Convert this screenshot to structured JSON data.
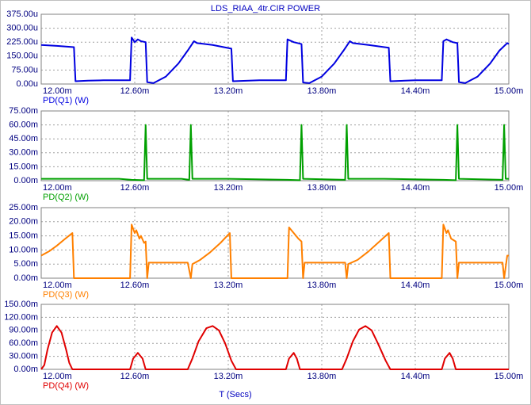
{
  "chart_data": [
    {
      "type": "line",
      "title": "LDS_RIAA_4tr.CIR POWER",
      "grid": true,
      "xlim": [
        12,
        15
      ],
      "xticks": [
        {
          "value": 12,
          "label": "12.00m"
        },
        {
          "value": 12.6,
          "label": "12.60m"
        },
        {
          "value": 13.2,
          "label": "13.20m"
        },
        {
          "value": 13.8,
          "label": "13.80m"
        },
        {
          "value": 14.4,
          "label": "14.40m"
        },
        {
          "value": 15,
          "label": "15.00m"
        }
      ],
      "ylim": [
        0,
        375
      ],
      "yticks": [
        {
          "value": 0,
          "label": "0.00u"
        },
        {
          "value": 75,
          "label": "75.00u"
        },
        {
          "value": 150,
          "label": "150.00u"
        },
        {
          "value": 225,
          "label": "225.00u"
        },
        {
          "value": 300,
          "label": "300.00u"
        },
        {
          "value": 375,
          "label": "375.00u"
        }
      ],
      "x": [
        12.0,
        12.1,
        12.21,
        12.22,
        12.3,
        12.4,
        12.57,
        12.58,
        12.6,
        12.62,
        12.64,
        12.67,
        12.68,
        12.72,
        12.8,
        12.88,
        12.94,
        12.98,
        13.0,
        13.1,
        13.22,
        13.23,
        13.4,
        13.57,
        13.58,
        13.62,
        13.67,
        13.68,
        13.72,
        13.8,
        13.88,
        13.94,
        13.98,
        14.0,
        14.1,
        14.23,
        14.24,
        14.4,
        14.57,
        14.58,
        14.6,
        14.64,
        14.67,
        14.68,
        14.72,
        14.8,
        14.88,
        14.94,
        14.99,
        15.0
      ],
      "series": [
        {
          "name": "PD(Q1) (W)",
          "color": "#0000e0",
          "values": [
            210,
            205,
            198,
            15,
            18,
            20,
            20,
            250,
            225,
            240,
            230,
            225,
            10,
            5,
            40,
            110,
            180,
            230,
            220,
            210,
            190,
            15,
            20,
            20,
            240,
            225,
            215,
            8,
            5,
            40,
            110,
            180,
            230,
            220,
            210,
            195,
            15,
            20,
            20,
            230,
            240,
            225,
            220,
            10,
            5,
            40,
            110,
            180,
            220,
            215
          ]
        }
      ]
    },
    {
      "type": "line",
      "grid": true,
      "xlim": [
        12,
        15
      ],
      "xticks": [
        {
          "value": 12,
          "label": "12.00m"
        },
        {
          "value": 12.6,
          "label": "12.60m"
        },
        {
          "value": 13.2,
          "label": "13.20m"
        },
        {
          "value": 13.8,
          "label": "13.80m"
        },
        {
          "value": 14.4,
          "label": "14.40m"
        },
        {
          "value": 15,
          "label": "15.00m"
        }
      ],
      "ylim": [
        0,
        75
      ],
      "yticks": [
        {
          "value": 0,
          "label": "0.00m"
        },
        {
          "value": 15,
          "label": "15.00m"
        },
        {
          "value": 30,
          "label": "30.00m"
        },
        {
          "value": 45,
          "label": "45.00m"
        },
        {
          "value": 60,
          "label": "60.00m"
        },
        {
          "value": 75,
          "label": "75.00m"
        }
      ],
      "x": [
        12.0,
        12.5,
        12.58,
        12.66,
        12.67,
        12.68,
        12.9,
        12.95,
        12.96,
        12.97,
        13.2,
        13.58,
        13.66,
        13.67,
        13.68,
        13.95,
        13.96,
        13.97,
        14.2,
        14.58,
        14.66,
        14.67,
        14.68,
        14.96,
        14.97,
        14.98,
        15.0
      ],
      "series": [
        {
          "name": "PD(Q2) (W)",
          "color": "#00a000",
          "values": [
            2,
            2,
            1,
            0.5,
            60,
            2,
            2,
            1,
            60,
            2,
            2,
            1,
            0.5,
            60,
            2,
            1,
            60,
            2,
            2,
            1,
            0.5,
            60,
            2,
            1,
            60,
            2,
            2
          ]
        }
      ]
    },
    {
      "type": "line",
      "grid": true,
      "xlim": [
        12,
        15
      ],
      "xticks": [
        {
          "value": 12,
          "label": "12.00m"
        },
        {
          "value": 12.6,
          "label": "12.60m"
        },
        {
          "value": 13.2,
          "label": "13.20m"
        },
        {
          "value": 13.8,
          "label": "13.80m"
        },
        {
          "value": 14.4,
          "label": "14.40m"
        },
        {
          "value": 15,
          "label": "15.00m"
        }
      ],
      "ylim": [
        0,
        25
      ],
      "yticks": [
        {
          "value": 0,
          "label": "0.00m"
        },
        {
          "value": 5,
          "label": "5.00m"
        },
        {
          "value": 10,
          "label": "10.00m"
        },
        {
          "value": 15,
          "label": "15.00m"
        },
        {
          "value": 20,
          "label": "20.00m"
        },
        {
          "value": 25,
          "label": "25.00m"
        }
      ],
      "x": [
        12.0,
        12.05,
        12.1,
        12.15,
        12.2,
        12.21,
        12.57,
        12.58,
        12.6,
        12.61,
        12.63,
        12.64,
        12.66,
        12.67,
        12.68,
        12.69,
        12.94,
        12.96,
        12.97,
        13.02,
        13.08,
        13.15,
        13.21,
        13.22,
        13.58,
        13.59,
        13.62,
        13.65,
        13.67,
        13.68,
        13.69,
        13.95,
        13.96,
        13.97,
        14.03,
        14.1,
        14.17,
        14.23,
        14.24,
        14.57,
        14.58,
        14.6,
        14.61,
        14.63,
        14.66,
        14.67,
        14.68,
        14.96,
        14.97,
        14.99,
        15.0
      ],
      "series": [
        {
          "name": "PD(Q3) (W)",
          "color": "#ff8000",
          "values": [
            8,
            9.5,
            11.5,
            13.8,
            16,
            0,
            0,
            19,
            16,
            17,
            14,
            15,
            12.5,
            13,
            0,
            5.5,
            5.5,
            0,
            5,
            6.5,
            9,
            12.5,
            16,
            0,
            0,
            18,
            16,
            14,
            13,
            0,
            5.5,
            5.5,
            0,
            5,
            6.5,
            9.5,
            13,
            16,
            0,
            0,
            19,
            16,
            17,
            14,
            13,
            0,
            5.5,
            5.5,
            0,
            8,
            8
          ]
        }
      ]
    },
    {
      "type": "line",
      "grid": true,
      "x_label": "T (Secs)",
      "xlim": [
        12,
        15
      ],
      "xticks": [
        {
          "value": 12,
          "label": "12.00m"
        },
        {
          "value": 12.6,
          "label": "12.60m"
        },
        {
          "value": 13.2,
          "label": "13.20m"
        },
        {
          "value": 13.8,
          "label": "13.80m"
        },
        {
          "value": 14.4,
          "label": "14.40m"
        },
        {
          "value": 15,
          "label": "15.00m"
        }
      ],
      "ylim": [
        0,
        150
      ],
      "yticks": [
        {
          "value": 0,
          "label": "0.00m"
        },
        {
          "value": 30,
          "label": "30.00m"
        },
        {
          "value": 60,
          "label": "60.00m"
        },
        {
          "value": 90,
          "label": "90.00m"
        },
        {
          "value": 120,
          "label": "120.00m"
        },
        {
          "value": 150,
          "label": "150.00m"
        }
      ],
      "x": [
        12.0,
        12.02,
        12.04,
        12.07,
        12.1,
        12.13,
        12.16,
        12.18,
        12.2,
        12.57,
        12.59,
        12.62,
        12.65,
        12.67,
        12.94,
        12.97,
        13.01,
        13.06,
        13.1,
        13.14,
        13.18,
        13.22,
        13.25,
        13.57,
        13.59,
        13.62,
        13.64,
        13.66,
        13.93,
        13.96,
        14.0,
        14.04,
        14.08,
        14.12,
        14.16,
        14.21,
        14.24,
        14.57,
        14.59,
        14.62,
        14.64,
        14.66,
        15.0
      ],
      "series": [
        {
          "name": "PD(Q4) (W)",
          "color": "#e00000",
          "values": [
            0,
            10,
            45,
            85,
            100,
            85,
            45,
            15,
            0,
            0,
            25,
            38,
            25,
            0,
            0,
            25,
            65,
            95,
            100,
            90,
            60,
            20,
            0,
            0,
            25,
            38,
            25,
            0,
            0,
            25,
            65,
            92,
            100,
            90,
            60,
            20,
            0,
            0,
            25,
            38,
            25,
            0,
            0
          ]
        }
      ]
    }
  ]
}
